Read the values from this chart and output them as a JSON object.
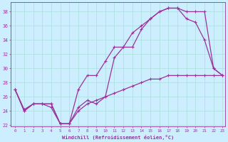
{
  "xlabel": "Windchill (Refroidissement éolien,°C)",
  "background_color": "#cceeff",
  "line_color": "#993399",
  "grid_color": "#aadddd",
  "xmin": 0,
  "xmax": 23,
  "ymin": 22,
  "ymax": 39,
  "yticks": [
    22,
    24,
    26,
    28,
    30,
    32,
    34,
    36,
    38
  ],
  "xticks": [
    0,
    1,
    2,
    3,
    4,
    5,
    6,
    7,
    8,
    9,
    10,
    11,
    12,
    13,
    14,
    15,
    16,
    17,
    18,
    19,
    20,
    21,
    22,
    23
  ],
  "line1_x": [
    0,
    1,
    2,
    3,
    4,
    5,
    6,
    7,
    8,
    9,
    10,
    11,
    12,
    13,
    14,
    15,
    16,
    17,
    18,
    19,
    20,
    21,
    22,
    23
  ],
  "line1_y": [
    27,
    24,
    25,
    25,
    25,
    22.2,
    22.2,
    27,
    29,
    29,
    31,
    33,
    33,
    35,
    36,
    37,
    38,
    38.5,
    38.5,
    38,
    38,
    38,
    30,
    29
  ],
  "line2_x": [
    0,
    1,
    2,
    3,
    4,
    5,
    6,
    7,
    8,
    9,
    10,
    11,
    12,
    13,
    14,
    15,
    16,
    17,
    18,
    19,
    20,
    21,
    22,
    23
  ],
  "line2_y": [
    27,
    24,
    25,
    25,
    25,
    22.2,
    22.2,
    24.5,
    25.5,
    25,
    26,
    31.5,
    33,
    33,
    35.5,
    37,
    38,
    38.5,
    38.5,
    37,
    36.5,
    34,
    30,
    29
  ],
  "line3_x": [
    0,
    1,
    2,
    3,
    4,
    5,
    6,
    7,
    8,
    9,
    10,
    11,
    12,
    13,
    14,
    15,
    16,
    17,
    18,
    19,
    20,
    21,
    22,
    23
  ],
  "line3_y": [
    27,
    24.2,
    25,
    25,
    24.5,
    22.2,
    22.2,
    24,
    25,
    25.5,
    26,
    26.5,
    27,
    27.5,
    28,
    28.5,
    28.5,
    29,
    29,
    29,
    29,
    29,
    29,
    29
  ]
}
